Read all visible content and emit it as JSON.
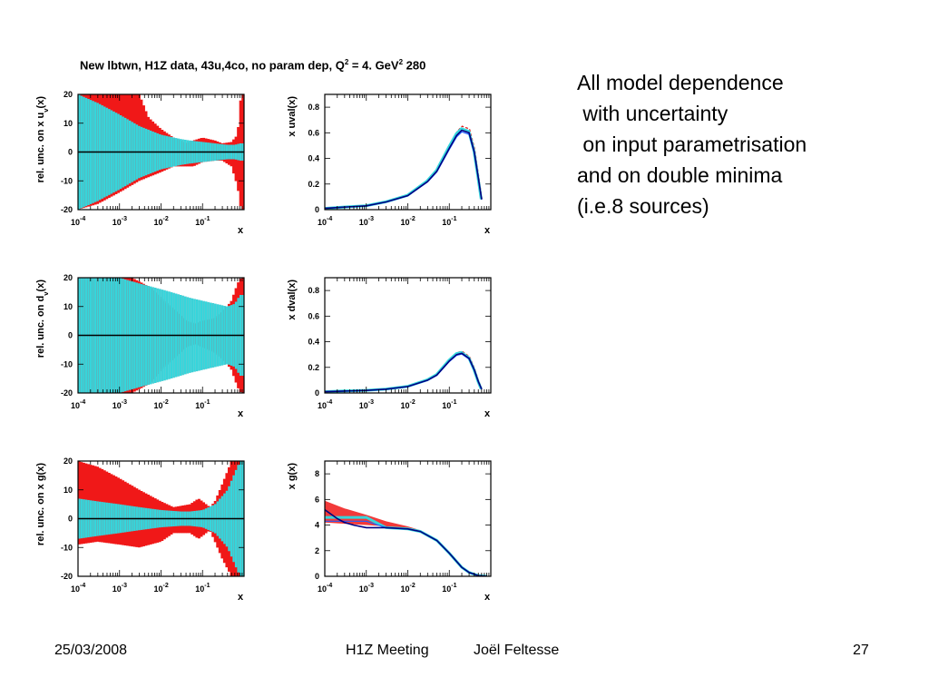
{
  "title": {
    "main": "New lbtwn, H1Z data, 43u,4co, no param dep, Q",
    "sup1": "2",
    "mid": " = 4. GeV",
    "sup2": "2",
    "tail": " 280"
  },
  "notes": [
    "All model dependence",
    " with uncertainty",
    " on input parametrisation",
    "and on double minima",
    "(i.e.8 sources)"
  ],
  "footer": {
    "date": "25/03/2008",
    "meeting": "H1Z Meeting",
    "author": "Joël Feltesse",
    "page": "27"
  },
  "colors": {
    "band_cyan": "#35d6dc",
    "band_red": "#f01818",
    "central": "#000080",
    "line_red": "#e02020",
    "line_blue": "#2060ff",
    "grid_line": "#000000"
  },
  "chart_data": [
    {
      "type": "area",
      "id": "rel-u",
      "ylabel": "rel. unc. on x u_v(x)",
      "xlabel": "x",
      "xscale": "log",
      "xlim": [
        0.0001,
        1
      ],
      "ylim": [
        -20,
        20
      ],
      "x_ticks": [
        "10^-4",
        "10^-3",
        "10^-2",
        "10^-1"
      ],
      "y_ticks": [
        "20",
        "10",
        "0",
        "-10",
        "-20"
      ],
      "series": [
        {
          "x": [
            0.0001,
            0.0003,
            0.001,
            0.003,
            0.01,
            0.03,
            0.05,
            0.1,
            0.2,
            0.4,
            0.6,
            0.8
          ],
          "values": [
            20,
            17,
            13,
            9,
            6,
            4.5,
            4,
            3.5,
            3,
            2.5,
            2.5,
            3
          ],
          "color": "cyan"
        },
        {
          "x": [
            0.0001,
            0.0003,
            0.001,
            0.003,
            0.01,
            0.02,
            0.04,
            0.06,
            0.1,
            0.2,
            0.3,
            0.5,
            0.7,
            0.85
          ],
          "values": [
            -20,
            -18,
            -14,
            -10,
            -7,
            -5,
            -5,
            -5,
            -3.5,
            -3,
            -3,
            -5,
            -12,
            -20
          ],
          "color": "red"
        },
        {
          "x": [
            0.0001,
            0.001,
            0.003,
            0.005,
            0.01,
            0.02,
            0.04,
            0.06,
            0.1,
            0.2,
            0.3,
            0.5,
            0.7,
            0.85
          ],
          "values": [
            20,
            20,
            20,
            12,
            8,
            5,
            3,
            4,
            5,
            4,
            3,
            3.5,
            6,
            20
          ],
          "color": "red"
        }
      ]
    },
    {
      "type": "line",
      "id": "uval",
      "ylabel": "x uval(x)",
      "xlabel": "x",
      "xscale": "log",
      "xlim": [
        0.0001,
        1
      ],
      "ylim": [
        0,
        0.9
      ],
      "x_ticks": [
        "10^-4",
        "10^-3",
        "10^-2",
        "10^-1"
      ],
      "y_ticks": [
        "0",
        "0.2",
        "0.4",
        "0.6",
        "0.8"
      ],
      "series": [
        {
          "x": [
            0.0001,
            0.0003,
            0.001,
            0.003,
            0.01,
            0.03,
            0.05,
            0.1,
            0.15,
            0.2,
            0.3,
            0.4,
            0.5,
            0.6
          ],
          "values": [
            0.01,
            0.02,
            0.03,
            0.06,
            0.11,
            0.22,
            0.3,
            0.48,
            0.58,
            0.62,
            0.6,
            0.45,
            0.25,
            0.08
          ],
          "color": "central"
        }
      ]
    },
    {
      "type": "area",
      "id": "rel-d",
      "ylabel": "rel. unc. on d_v(x)",
      "xlabel": "x",
      "xscale": "log",
      "xlim": [
        0.0001,
        1
      ],
      "ylim": [
        -20,
        20
      ],
      "x_ticks": [
        "10^-4",
        "10^-3",
        "10^-2",
        "10^-1"
      ],
      "y_ticks": [
        "20",
        "10",
        "0",
        "-10",
        "-20"
      ],
      "series": [
        {
          "x": [
            0.0001,
            0.0003,
            0.001,
            0.003,
            0.01,
            0.03,
            0.05,
            0.1,
            0.2,
            0.4,
            0.6,
            0.8
          ],
          "values": [
            20,
            20,
            20,
            18,
            16,
            14,
            13,
            12,
            11,
            10,
            11,
            14
          ],
          "color": "cyan"
        },
        {
          "x": [
            0.0001,
            0.001,
            0.002,
            0.005,
            0.01,
            0.02,
            0.04,
            0.07,
            0.1,
            0.2,
            0.3,
            0.5,
            0.7,
            0.85
          ],
          "values": [
            20,
            20,
            20,
            17,
            13,
            9,
            5,
            4,
            5,
            6,
            8,
            12,
            18,
            20
          ],
          "color": "red"
        },
        {
          "x": [
            0.0001,
            0.001,
            0.002,
            0.005,
            0.01,
            0.02,
            0.04,
            0.07,
            0.1,
            0.2,
            0.3,
            0.5,
            0.7,
            0.85
          ],
          "values": [
            -20,
            -20,
            -20,
            -17,
            -12,
            -8,
            -4,
            -3,
            -4,
            -6,
            -8,
            -12,
            -18,
            -20
          ],
          "color": "red"
        }
      ]
    },
    {
      "type": "line",
      "id": "dval",
      "ylabel": "x dval(x)",
      "xlabel": "x",
      "xscale": "log",
      "xlim": [
        0.0001,
        1
      ],
      "ylim": [
        0,
        0.9
      ],
      "x_ticks": [
        "10^-4",
        "10^-3",
        "10^-2",
        "10^-1"
      ],
      "y_ticks": [
        "0",
        "0.2",
        "0.4",
        "0.6",
        "0.8"
      ],
      "series": [
        {
          "x": [
            0.0001,
            0.0003,
            0.001,
            0.003,
            0.01,
            0.03,
            0.05,
            0.1,
            0.15,
            0.2,
            0.3,
            0.4,
            0.5,
            0.6
          ],
          "values": [
            0.01,
            0.015,
            0.02,
            0.03,
            0.05,
            0.1,
            0.14,
            0.25,
            0.3,
            0.31,
            0.27,
            0.18,
            0.09,
            0.03
          ],
          "color": "central"
        }
      ]
    },
    {
      "type": "area",
      "id": "rel-g",
      "ylabel": "rel. unc. on x g(x)",
      "xlabel": "x",
      "xscale": "log",
      "xlim": [
        0.0001,
        1
      ],
      "ylim": [
        -20,
        20
      ],
      "x_ticks": [
        "10^-4",
        "10^-3",
        "10^-2",
        "10^-1"
      ],
      "y_ticks": [
        "20",
        "10",
        "0",
        "-10",
        "-20"
      ],
      "series": [
        {
          "x": [
            0.0001,
            0.0003,
            0.001,
            0.003,
            0.01,
            0.03,
            0.05,
            0.1,
            0.2,
            0.4,
            0.6,
            0.8
          ],
          "values": [
            7,
            6,
            5,
            4,
            3,
            2.5,
            2.5,
            3,
            5,
            10,
            16,
            20
          ],
          "color": "cyan"
        },
        {
          "x": [
            0.0001,
            0.0003,
            0.001,
            0.003,
            0.01,
            0.02,
            0.05,
            0.08,
            0.1,
            0.15,
            0.2,
            0.3,
            0.5,
            0.8
          ],
          "values": [
            20,
            18,
            14,
            10,
            6,
            4,
            5,
            7,
            6,
            4,
            6,
            12,
            20,
            20
          ],
          "color": "red"
        },
        {
          "x": [
            0.0001,
            0.0003,
            0.001,
            0.003,
            0.01,
            0.02,
            0.05,
            0.08,
            0.1,
            0.15,
            0.2,
            0.3,
            0.5,
            0.8
          ],
          "values": [
            -9,
            -8,
            -9,
            -10,
            -8,
            -5,
            -5,
            -7,
            -6,
            -4,
            -8,
            -14,
            -20,
            -20
          ],
          "color": "red"
        }
      ]
    },
    {
      "type": "line",
      "id": "xg",
      "ylabel": "x g(x)",
      "xlabel": "x",
      "xscale": "log",
      "xlim": [
        0.0001,
        1
      ],
      "ylim": [
        0,
        9
      ],
      "x_ticks": [
        "10^-4",
        "10^-3",
        "10^-2",
        "10^-1"
      ],
      "y_ticks": [
        "0",
        "2",
        "4",
        "6",
        "8"
      ],
      "series": [
        {
          "x": [
            0.0001,
            0.0002,
            0.0003,
            0.0005,
            0.001,
            0.003,
            0.01,
            0.02,
            0.05,
            0.1,
            0.2,
            0.3,
            0.5,
            0.8
          ],
          "values": [
            5.2,
            4.5,
            4.2,
            4.0,
            3.8,
            3.8,
            3.7,
            3.5,
            2.8,
            1.8,
            0.7,
            0.3,
            0.05,
            0
          ],
          "color": "central"
        }
      ]
    }
  ]
}
